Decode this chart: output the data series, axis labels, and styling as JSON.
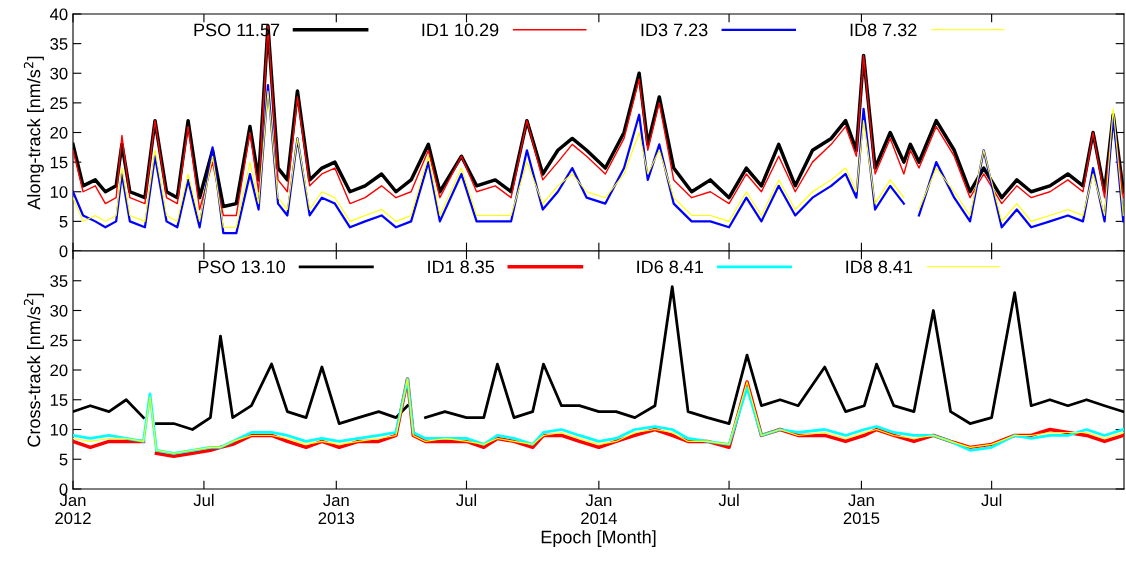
{
  "chart_data": [
    {
      "type": "line",
      "ylabel": "Along-track [nm/s$^{2}$]",
      "xlim": [
        "2012-01-01",
        "2016-01-01"
      ],
      "ylim": [
        0,
        40
      ],
      "yticks": [
        0,
        5,
        10,
        15,
        20,
        25,
        30,
        35,
        40
      ],
      "xticks": [
        {
          "value": "2012-01-01",
          "label": null
        },
        {
          "value": "2012-07-01",
          "label": null
        },
        {
          "value": "2013-01-01",
          "label": null
        },
        {
          "value": "2013-07-01",
          "label": null
        },
        {
          "value": "2014-01-01",
          "label": null
        },
        {
          "value": "2014-07-01",
          "label": null
        },
        {
          "value": "2015-01-01",
          "label": null
        },
        {
          "value": "2015-07-01",
          "label": null
        }
      ],
      "tick_labels": "y",
      "grid": false,
      "legend": "top",
      "line_style": "solid",
      "marker": "none",
      "x": [
        "2012-01-01",
        "2012-01-15",
        "2012-02-01",
        "2012-02-15",
        "2012-03-01",
        "2012-03-09",
        "2012-03-20",
        "2012-04-10",
        "2012-04-24",
        "2012-05-10",
        "2012-05-25",
        "2012-06-09",
        "2012-06-25",
        "2012-07-13",
        "2012-07-28",
        "2012-08-15",
        "2012-09-03",
        "2012-09-15",
        "2012-09-28",
        "2012-10-12",
        "2012-10-25",
        "2012-11-08",
        "2012-11-25",
        "2012-12-12",
        "2012-12-30",
        "2013-01-20",
        "2013-02-10",
        "2013-03-05",
        "2013-03-25",
        "2013-04-15",
        "2013-05-09",
        "2013-05-25",
        "2013-06-24",
        "2013-07-15",
        "2013-08-10",
        "2013-09-01",
        "2013-09-23",
        "2013-10-15",
        "2013-11-05",
        "2013-11-25",
        "2013-12-15",
        "2014-01-10",
        "2014-02-05",
        "2014-02-26",
        "2014-03-10",
        "2014-03-26",
        "2014-04-15",
        "2014-05-10",
        "2014-06-05",
        "2014-07-01",
        "2014-07-25",
        "2014-08-15",
        "2014-09-08",
        "2014-10-01",
        "2014-10-25",
        "2014-11-20",
        "2014-12-10",
        "2014-12-25",
        "2015-01-04",
        "2015-01-20",
        "2015-02-10",
        "2015-03-01",
        "2015-03-10",
        "2015-03-22",
        "2015-04-15",
        "2015-05-10",
        "2015-06-01",
        "2015-06-20",
        "2015-07-15",
        "2015-08-05",
        "2015-08-25",
        "2015-09-20",
        "2015-10-15",
        "2015-11-05",
        "2015-11-19",
        "2015-12-05",
        "2015-12-17",
        "2015-12-31"
      ],
      "series": [
        {
          "name": "PSO 11.57",
          "color": "#000000",
          "values": [
            18,
            11,
            12,
            10,
            11,
            18,
            10,
            9,
            22,
            10,
            9,
            22,
            9,
            17,
            7.5,
            8,
            21,
            12,
            38,
            14,
            12,
            27,
            12,
            14,
            15,
            10,
            11,
            13,
            10,
            12,
            18,
            10,
            16,
            11,
            12,
            10,
            22,
            13,
            17,
            19,
            17,
            14,
            20,
            30,
            18,
            26,
            14,
            10,
            12,
            9,
            14,
            11,
            18,
            11,
            17,
            19,
            22,
            17,
            33,
            14,
            20,
            15,
            18,
            15,
            22,
            17,
            10,
            14,
            9,
            12,
            10,
            11,
            13,
            11,
            20,
            10,
            23,
            10
          ]
        },
        {
          "name": "ID1 10.29",
          "color": "#ff0000",
          "values": [
            17,
            10,
            11,
            8,
            9,
            19.5,
            9,
            8,
            22,
            9,
            8,
            21,
            7,
            15,
            6,
            6,
            20,
            10,
            38,
            12,
            10,
            26,
            11,
            13,
            14,
            8,
            9,
            11,
            9,
            10,
            17,
            9,
            16,
            10,
            11,
            9,
            22,
            12,
            15,
            18,
            16,
            13,
            19,
            29,
            17,
            25,
            12,
            9,
            10,
            8,
            13,
            10,
            16,
            10,
            15,
            18,
            21,
            16,
            33,
            13,
            19,
            13,
            17,
            14,
            21,
            16,
            9,
            13,
            8,
            11,
            9,
            10,
            12,
            10,
            20,
            9,
            23,
            9
          ]
        },
        {
          "name": "ID3 7.23",
          "color": "#0000ff",
          "values": [
            10,
            6,
            5,
            4,
            5,
            13,
            5,
            4,
            16,
            5,
            4,
            12,
            4,
            17.5,
            3,
            3,
            13,
            7,
            28,
            8,
            6,
            19,
            6,
            9,
            8,
            4,
            5,
            6,
            4,
            5,
            15,
            5,
            13,
            5,
            5,
            5,
            17,
            7,
            10,
            14,
            9,
            8,
            14,
            23,
            12,
            18,
            8,
            5,
            5,
            4,
            9,
            5,
            11,
            6,
            9,
            11,
            13,
            9,
            24,
            7,
            11,
            8,
            null,
            6,
            15,
            9,
            5,
            17,
            4,
            7,
            4,
            5,
            6,
            5,
            14,
            5,
            23,
            5
          ]
        },
        {
          "name": "ID8 7.32",
          "color": "#ffff00",
          "values": [
            9,
            5,
            6,
            5,
            6,
            14,
            6,
            5,
            17,
            6,
            5,
            13,
            5,
            16,
            4,
            4,
            15,
            8,
            27,
            9,
            7,
            19,
            7,
            10,
            9,
            5,
            6,
            7,
            5,
            6,
            16,
            6,
            14,
            6,
            6,
            6,
            15,
            8,
            11,
            13,
            10,
            9,
            13,
            20,
            13,
            17,
            9,
            6,
            6,
            5,
            10,
            6,
            12,
            7,
            10,
            12,
            14,
            10,
            22,
            8,
            12,
            9,
            null,
            7,
            14,
            10,
            6,
            17,
            5,
            8,
            5,
            6,
            7,
            6,
            13,
            6,
            24,
            6
          ]
        }
      ]
    },
    {
      "type": "line",
      "ylabel": "Cross-track [nm/s$^{2}$]",
      "xlabel": "Epoch [Month]",
      "xlim": [
        "2012-01-01",
        "2016-01-01"
      ],
      "ylim": [
        0,
        40
      ],
      "yticks": [
        0,
        5,
        10,
        15,
        20,
        25,
        30,
        35
      ],
      "xticks": [
        {
          "value": "2012-01-01",
          "label": "Jan\n2012"
        },
        {
          "value": "2012-07-01",
          "label": "Jul"
        },
        {
          "value": "2013-01-01",
          "label": "Jan\n2013"
        },
        {
          "value": "2013-07-01",
          "label": "Jul"
        },
        {
          "value": "2014-01-01",
          "label": "Jan\n2014"
        },
        {
          "value": "2014-07-01",
          "label": "Jul"
        },
        {
          "value": "2015-01-01",
          "label": "Jan\n2015"
        },
        {
          "value": "2015-07-01",
          "label": "Jul"
        }
      ],
      "grid": false,
      "legend": "top",
      "line_style": "solid",
      "marker": "none",
      "x": [
        "2012-01-01",
        "2012-01-25",
        "2012-02-20",
        "2012-03-15",
        "2012-04-08",
        "2012-04-17",
        "2012-04-26",
        "2012-05-20",
        "2012-06-15",
        "2012-07-10",
        "2012-07-24",
        "2012-08-10",
        "2012-09-05",
        "2012-10-03",
        "2012-10-25",
        "2012-11-20",
        "2012-12-12",
        "2013-01-05",
        "2013-02-01",
        "2013-03-01",
        "2013-03-25",
        "2013-04-10",
        "2013-04-18",
        "2013-05-05",
        "2013-06-01",
        "2013-07-01",
        "2013-07-25",
        "2013-08-13",
        "2013-09-05",
        "2013-10-01",
        "2013-10-16",
        "2013-11-10",
        "2013-12-05",
        "2014-01-01",
        "2014-01-25",
        "2014-02-20",
        "2014-03-20",
        "2014-04-13",
        "2014-05-05",
        "2014-06-01",
        "2014-07-01",
        "2014-07-26",
        "2014-08-15",
        "2014-09-10",
        "2014-10-05",
        "2014-11-11",
        "2014-12-10",
        "2015-01-05",
        "2015-01-22",
        "2015-02-15",
        "2015-03-15",
        "2015-04-11",
        "2015-05-05",
        "2015-06-01",
        "2015-07-01",
        "2015-08-02",
        "2015-08-25",
        "2015-09-20",
        "2015-10-15",
        "2015-11-10",
        "2015-12-05",
        "2015-12-31"
      ],
      "series": [
        {
          "name": "PSO 13.10",
          "color": "#000000",
          "values": [
            13,
            14,
            13,
            15,
            12,
            null,
            11,
            11,
            10,
            12,
            25.7,
            12,
            14,
            21,
            13,
            12,
            20.5,
            11,
            12,
            13,
            12,
            14,
            null,
            12,
            13,
            12,
            12,
            21,
            12,
            13,
            21,
            14,
            14,
            13,
            13,
            12,
            14,
            34,
            13,
            12,
            11,
            22.5,
            14,
            15,
            14,
            20.5,
            13,
            14,
            21,
            14,
            13,
            30,
            13,
            11,
            12,
            33,
            14,
            15,
            14,
            15,
            14,
            13
          ]
        },
        {
          "name": "ID1 8.35",
          "color": "#ff0000",
          "values": [
            8,
            7,
            8,
            8,
            8,
            null,
            6,
            5.5,
            6,
            6.5,
            7,
            7.5,
            9,
            9,
            8,
            7,
            8,
            7,
            8,
            8,
            9,
            18.5,
            9,
            8,
            8,
            8,
            7,
            8.5,
            8,
            7,
            9,
            9,
            8,
            7,
            8,
            9,
            10,
            9,
            8,
            8,
            7,
            18,
            9,
            10,
            9,
            9,
            8,
            9,
            10,
            9,
            8,
            9,
            8,
            7,
            7.5,
            9,
            9,
            10,
            9.5,
            9,
            8,
            9
          ]
        },
        {
          "name": "ID6 8.41",
          "color": "#00ffff",
          "values": [
            9,
            8.5,
            9,
            8.5,
            8,
            16,
            6.5,
            6,
            6.5,
            7,
            7,
            8,
            9.5,
            9.5,
            9,
            8,
            8.5,
            8,
            8.5,
            9,
            9.5,
            18.5,
            9.5,
            8.5,
            8.5,
            8.5,
            7.5,
            9,
            8.5,
            7.5,
            9.5,
            10,
            9,
            8,
            8.5,
            10,
            10.5,
            10,
            8.5,
            8,
            7.5,
            17,
            9,
            10,
            9.5,
            10,
            9,
            10,
            10.5,
            9.5,
            9,
            9,
            8,
            6.5,
            7,
            9,
            8.5,
            9,
            9,
            10,
            9,
            10
          ]
        },
        {
          "name": "ID8 8.41",
          "color": "#ffff00",
          "values": [
            8.5,
            8,
            8.5,
            8.5,
            8,
            15.5,
            6.5,
            6,
            6.5,
            7,
            7,
            8,
            9,
            9,
            8.5,
            7.5,
            8,
            7.5,
            8,
            8.5,
            9,
            18.5,
            9,
            8,
            8.5,
            8,
            7.5,
            8.5,
            8,
            7.5,
            9,
            9.5,
            8.5,
            7.5,
            8,
            9.5,
            10,
            9.5,
            8,
            8,
            7.5,
            18,
            9,
            10,
            9,
            9.5,
            8.5,
            9.5,
            10,
            9,
            8.5,
            9,
            8,
            7,
            7.5,
            9,
            9,
            9.5,
            9.5,
            9.5,
            8.5,
            9.5
          ]
        }
      ]
    }
  ]
}
